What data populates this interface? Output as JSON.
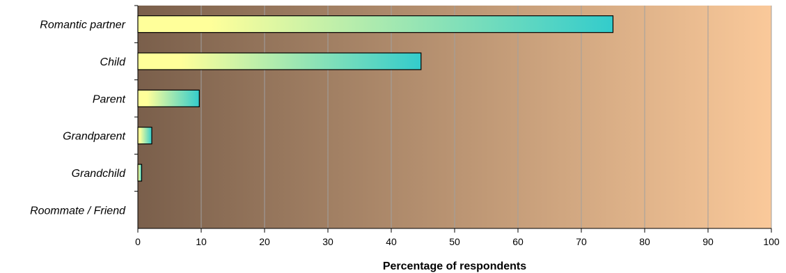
{
  "chart_data": {
    "type": "bar",
    "orientation": "horizontal",
    "categories": [
      "Romantic partner",
      "Child",
      "Parent",
      "Grandparent",
      "Grandchild",
      "Roommate / Friend"
    ],
    "values": [
      75,
      44.7,
      9.7,
      2.2,
      0.6,
      0
    ],
    "xlabel": "Percentage of respondents",
    "ylabel": "",
    "xlim": [
      0,
      100
    ],
    "xticks": [
      "0",
      "10",
      "20",
      "30",
      "40",
      "50",
      "60",
      "70",
      "80",
      "90",
      "100"
    ],
    "grid": "vertical",
    "legend": "none"
  },
  "colors": {
    "plot_bg_left": "#7a5f4b",
    "plot_bg_right": "#fac99a",
    "bar_start": "#ffff9a",
    "bar_end": "#33cccc",
    "gridline": "#a0a0a0",
    "axis": "#000000"
  }
}
